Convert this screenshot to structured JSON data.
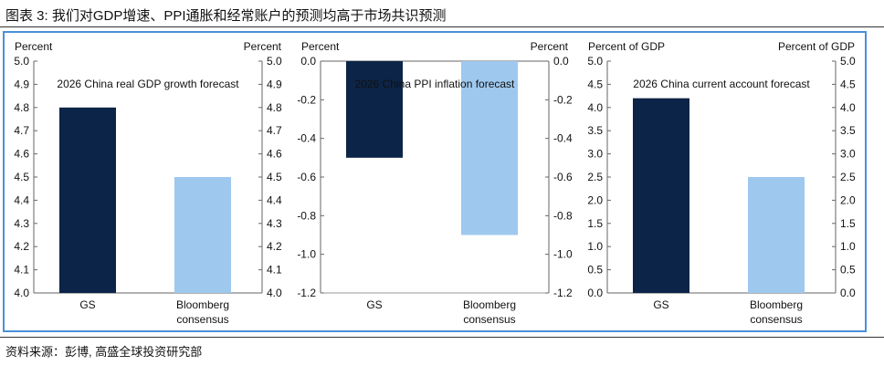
{
  "header": {
    "title": "图表 3: 我们对GDP增速、PPI通胀和经常账户的预测均高于市场共识预测"
  },
  "footer": {
    "source": "资料来源：彭博, 高盛全球投资研究部"
  },
  "colors": {
    "gs": "#0c2447",
    "bloomberg": "#9ec8ee",
    "frame": "#4a90d9"
  },
  "chart_data": [
    {
      "type": "bar",
      "title": "2026 China real GDP growth forecast",
      "categories": [
        "GS",
        "Bloomberg consensus"
      ],
      "category_lines": [
        [
          "GS"
        ],
        [
          "Bloomberg",
          "consensus"
        ]
      ],
      "values": [
        4.8,
        4.5
      ],
      "ylabel_left": "Percent",
      "ylabel_right": "Percent",
      "ylim": [
        4.0,
        5.0
      ],
      "ticks": [
        "5.0",
        "4.9",
        "4.8",
        "4.7",
        "4.6",
        "4.5",
        "4.4",
        "4.3",
        "4.2",
        "4.1",
        "4.0"
      ],
      "tick_values": [
        5.0,
        4.9,
        4.8,
        4.7,
        4.6,
        4.5,
        4.4,
        4.3,
        4.2,
        4.1,
        4.0
      ]
    },
    {
      "type": "bar",
      "title": "2026 China PPI inflation forecast",
      "categories": [
        "GS",
        "Bloomberg consensus"
      ],
      "category_lines": [
        [
          "GS"
        ],
        [
          "Bloomberg",
          "consensus"
        ]
      ],
      "values": [
        -0.5,
        -0.9
      ],
      "ylabel_left": "Percent",
      "ylabel_right": "Percent",
      "ylim": [
        -1.2,
        0.0
      ],
      "ticks": [
        "0.0",
        "-0.2",
        "-0.4",
        "-0.6",
        "-0.8",
        "-1.0",
        "-1.2"
      ],
      "tick_values": [
        0.0,
        -0.2,
        -0.4,
        -0.6,
        -0.8,
        -1.0,
        -1.2
      ]
    },
    {
      "type": "bar",
      "title": "2026 China current account forecast",
      "categories": [
        "GS",
        "Bloomberg consensus"
      ],
      "category_lines": [
        [
          "GS"
        ],
        [
          "Bloomberg",
          "consensus"
        ]
      ],
      "values": [
        4.2,
        2.5
      ],
      "ylabel_left": "Percent of GDP",
      "ylabel_right": "Percent of GDP",
      "ylim": [
        0.0,
        5.0
      ],
      "ticks": [
        "5.0",
        "4.5",
        "4.0",
        "3.5",
        "3.0",
        "2.5",
        "2.0",
        "1.5",
        "1.0",
        "0.5",
        "0.0"
      ],
      "tick_values": [
        5.0,
        4.5,
        4.0,
        3.5,
        3.0,
        2.5,
        2.0,
        1.5,
        1.0,
        0.5,
        0.0
      ]
    }
  ]
}
